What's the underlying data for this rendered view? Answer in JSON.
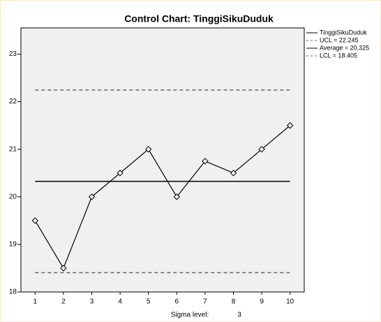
{
  "chart_data": {
    "type": "line",
    "title": "Control Chart: TinggiSikuDuduk",
    "categories": [
      "1",
      "2",
      "3",
      "4",
      "5",
      "6",
      "7",
      "8",
      "9",
      "10"
    ],
    "series": [
      {
        "name": "TinggiSikuDuduk",
        "color": "#000000",
        "values": [
          19.5,
          18.5,
          20,
          20.5,
          21,
          20,
          20.75,
          20.5,
          21,
          21.5
        ]
      }
    ],
    "control_limits": [
      {
        "name": "UCL = 22.245",
        "value": 22.245,
        "color": "#666666",
        "dashed": true
      },
      {
        "name": "Average = 20.325",
        "value": 20.325,
        "color": "#000000",
        "dashed": false
      },
      {
        "name": "LCL = 18.405",
        "value": 18.405,
        "color": "#666666",
        "dashed": true
      }
    ],
    "ylim": [
      18,
      23.55
    ],
    "yticks": [
      18,
      19,
      20,
      21,
      22,
      23
    ],
    "sigma_label": "Sigma level:",
    "sigma_level": 3
  }
}
